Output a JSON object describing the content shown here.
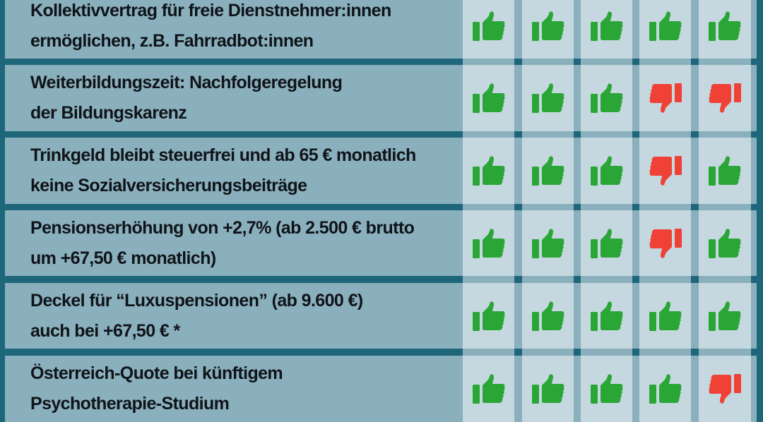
{
  "colors": {
    "background": "#1e6679",
    "text_cell": "#8aafbd",
    "icon_cell": "#c6d8df",
    "thumbs_up": "#2aa637",
    "thumbs_down": "#ef4136",
    "text": "#0f1418"
  },
  "icons": {
    "up": "thumbs-up-icon",
    "down": "thumbs-down-icon"
  },
  "rows": [
    {
      "lines": [
        "Kollektivvertrag für freie Dienstnehmer:innen",
        "ermöglichen, z.B. Fahrradbot:innen"
      ],
      "votes": [
        "up",
        "up",
        "up",
        "up",
        "up"
      ]
    },
    {
      "lines": [
        "Weiterbildungszeit: Nachfolgeregelung",
        "der Bildungskarenz"
      ],
      "votes": [
        "up",
        "up",
        "up",
        "down",
        "down"
      ]
    },
    {
      "lines": [
        "Trinkgeld bleibt steuerfrei und ab 65 € monatlich",
        "keine Sozialversicherungsbeiträge"
      ],
      "votes": [
        "up",
        "up",
        "up",
        "down",
        "up"
      ]
    },
    {
      "lines": [
        "Pensionserhöhung von +2,7% (ab 2.500 € brutto",
        "um +67,50 € monatlich)"
      ],
      "votes": [
        "up",
        "up",
        "up",
        "down",
        "up"
      ]
    },
    {
      "lines": [
        "Deckel für “Luxuspensionen” (ab 9.600 €)",
        "auch bei +67,50 € *"
      ],
      "votes": [
        "up",
        "up",
        "up",
        "up",
        "up"
      ]
    },
    {
      "lines": [
        "Österreich-Quote bei künftigem",
        "Psychotherapie-Studium"
      ],
      "votes": [
        "up",
        "up",
        "up",
        "up",
        "down"
      ]
    }
  ]
}
